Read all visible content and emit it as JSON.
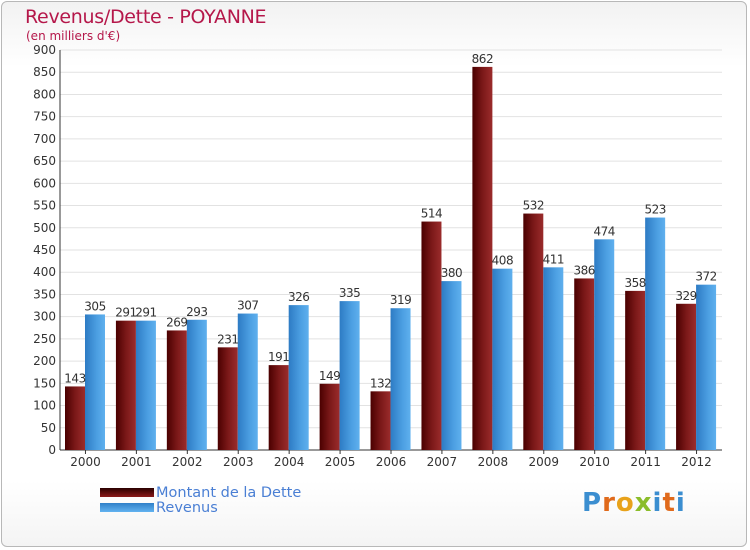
{
  "title": "Revenus/Dette - POYANNE",
  "subtitle": "(en milliers d'€)",
  "legend": {
    "dette": "Montant de la Dette",
    "revenus": "Revenus"
  },
  "logo": "Proxiti",
  "colors": {
    "title": "#b5174a",
    "dette_dark": "#4a0000",
    "dette_light": "#9b2c2c",
    "revenus_dark": "#2d7bc4",
    "revenus_light": "#5fb0ee",
    "legend_text": "#4a7fd4"
  },
  "chart_data": {
    "type": "bar",
    "title": "Revenus/Dette - POYANNE",
    "ylabel": "(en milliers d'€)",
    "xlabel": "",
    "ylim": [
      0,
      900
    ],
    "ytick_step": 50,
    "grid": true,
    "legend_position": "bottom-left",
    "categories": [
      "2000",
      "2001",
      "2002",
      "2003",
      "2004",
      "2005",
      "2006",
      "2007",
      "2008",
      "2009",
      "2010",
      "2011",
      "2012"
    ],
    "series": [
      {
        "name": "Montant de la Dette",
        "values": [
          143,
          291,
          269,
          231,
          191,
          149,
          132,
          514,
          862,
          532,
          386,
          358,
          329
        ]
      },
      {
        "name": "Revenus",
        "values": [
          305,
          291,
          293,
          307,
          326,
          335,
          319,
          380,
          408,
          411,
          474,
          523,
          372
        ]
      }
    ]
  }
}
